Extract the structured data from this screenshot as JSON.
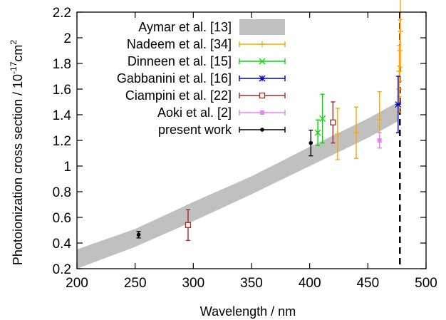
{
  "chart_data": {
    "type": "scatter",
    "title": "",
    "xlabel": "Wavelength / nm",
    "ylabel": {
      "prefix": "Photoionization cross section / 10",
      "exp1": "-17",
      "mid": "cm",
      "exp2": "2"
    },
    "xlim": [
      200,
      500
    ],
    "ylim": [
      0.2,
      2.2
    ],
    "xticks": [
      200,
      250,
      300,
      350,
      400,
      450,
      500
    ],
    "yticks": [
      0.2,
      0.4,
      0.6,
      0.8,
      1.0,
      1.2,
      1.4,
      1.6,
      1.8,
      2.0,
      2.2
    ],
    "ytick_labels": [
      "0.2",
      "0.4",
      "0.6",
      "0.8",
      "1",
      "1.2",
      "1.4",
      "1.6",
      "1.8",
      "2",
      "2.2"
    ],
    "grid": false,
    "legend_position": "top-left",
    "band": {
      "name": "Aymar et al. [13]",
      "color": "#c0c0c0",
      "x": [
        200,
        250,
        300,
        350,
        400,
        450,
        476
      ],
      "lower": [
        0.2,
        0.37,
        0.57,
        0.78,
        1.0,
        1.22,
        1.35
      ],
      "upper": [
        0.35,
        0.51,
        0.72,
        0.92,
        1.15,
        1.37,
        1.5
      ]
    },
    "threshold_line": {
      "x": 477.5
    },
    "series": [
      {
        "name": "Nadeem et al. [34]",
        "color": "#ffa500",
        "marker": "plus",
        "points": [
          {
            "x": 424,
            "y": 1.25,
            "err": 0.2
          },
          {
            "x": 440,
            "y": 1.26,
            "err": 0.2
          },
          {
            "x": 460,
            "y": 1.36,
            "err": 0.22
          },
          {
            "x": 477,
            "y": 1.6,
            "err": 0.18
          },
          {
            "x": 477,
            "y": 1.74,
            "err": 0.2
          },
          {
            "x": 477.5,
            "y": 1.9,
            "err": 0.24
          },
          {
            "x": 478,
            "y": 2.05,
            "err": 0.28
          }
        ]
      },
      {
        "name": "Dinneen et al. [15]",
        "color": "#00dd00",
        "marker": "x",
        "points": [
          {
            "x": 407,
            "y": 1.26,
            "err": 0.1
          },
          {
            "x": 411,
            "y": 1.37,
            "err": 0.19
          }
        ]
      },
      {
        "name": "Gabbanini et al. [16]",
        "color": "#0000cc",
        "marker": "star",
        "points": [
          {
            "x": 476,
            "y": 1.48,
            "err": 0.22
          }
        ]
      },
      {
        "name": "Ciampini et al. [22]",
        "color": "#a52a2a",
        "marker": "square-open",
        "points": [
          {
            "x": 295.5,
            "y": 0.54,
            "err": 0.12
          },
          {
            "x": 420,
            "y": 1.34,
            "err": 0.16
          }
        ]
      },
      {
        "name": "Aoki et al. [2]",
        "color": "#ee82ee",
        "marker": "square-filled",
        "points": [
          {
            "x": 460,
            "y": 1.2,
            "err": 0.06
          }
        ]
      },
      {
        "name": "present work",
        "color": "#000000",
        "marker": "dot",
        "points": [
          {
            "x": 253,
            "y": 0.465,
            "err": 0.025
          },
          {
            "x": 401,
            "y": 1.18,
            "err": 0.1
          }
        ]
      }
    ]
  }
}
